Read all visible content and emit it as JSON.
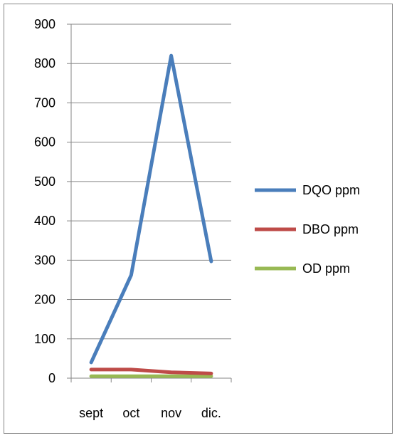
{
  "chart_data": {
    "type": "line",
    "categories": [
      "sept",
      "oct",
      "nov",
      "dic."
    ],
    "series": [
      {
        "name": "DQO ppm",
        "values": [
          40,
          262,
          820,
          297
        ],
        "color": "#4A7EBB"
      },
      {
        "name": "DBO ppm",
        "values": [
          22,
          22,
          15,
          12
        ],
        "color": "#BE4B48"
      },
      {
        "name": "OD ppm",
        "values": [
          5,
          5,
          5,
          5
        ],
        "color": "#98B954"
      }
    ],
    "title": "",
    "xlabel": "",
    "ylabel": "",
    "ylim": [
      0,
      900
    ],
    "yticks": [
      "0",
      "100",
      "200",
      "300",
      "400",
      "500",
      "600",
      "700",
      "800",
      "900"
    ],
    "grid": true,
    "legend_position": "right"
  }
}
